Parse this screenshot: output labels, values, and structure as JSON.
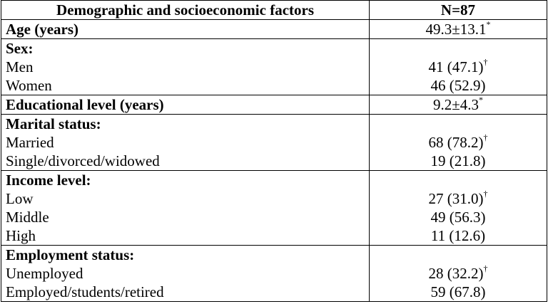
{
  "table": {
    "header": [
      "Demographic and socioeconomic factors",
      "N=87"
    ],
    "sections": [
      {
        "title": "Age (years)",
        "value": "49.3±13.1",
        "sup": "*",
        "items": []
      },
      {
        "title": "Sex:",
        "items": [
          {
            "label": "Men",
            "value": "41 (47.1)",
            "sup": "†"
          },
          {
            "label": "Women",
            "value": "46 (52.9)"
          }
        ]
      },
      {
        "title": "Educational level (years)",
        "value": "9.2±4.3",
        "sup": "*",
        "items": []
      },
      {
        "title": "Marital status:",
        "items": [
          {
            "label": "Married",
            "value": "68 (78.2)",
            "sup": "†"
          },
          {
            "label": "Single/divorced/widowed",
            "value": "19 (21.8)"
          }
        ]
      },
      {
        "title": "Income level:",
        "items": [
          {
            "label": "Low",
            "value": "27 (31.0)",
            "sup": "†"
          },
          {
            "label": "Middle",
            "value": "49 (56.3)"
          },
          {
            "label": "High",
            "value": "11 (12.6)"
          }
        ]
      },
      {
        "title": "Employment status:",
        "items": [
          {
            "label": "Unemployed",
            "value": "28 (32.2)",
            "sup": "†"
          },
          {
            "label": "Employed/students/retired",
            "value": "59 (67.8)"
          }
        ]
      }
    ]
  }
}
